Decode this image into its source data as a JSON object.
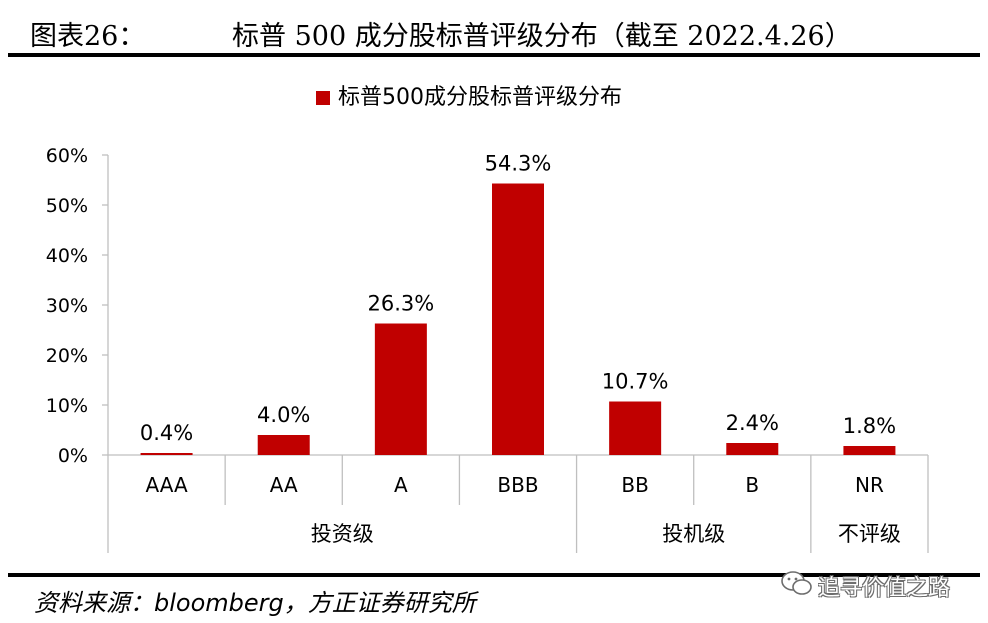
{
  "figure_label": "图表26：",
  "figure_title": "标普 500 成分股标普评级分布（截至 2022.4.26）",
  "source": "资料来源：bloomberg，方正证券研究所",
  "watermark": "追寻价值之路",
  "colors": {
    "bar": "#C00000",
    "axis": "#BFBFBF",
    "text": "#000000"
  },
  "chart_data": {
    "type": "bar",
    "legend": {
      "label": "标普500成分股标普评级分布",
      "position": "top-center"
    },
    "categories": [
      "AAA",
      "AA",
      "A",
      "BBB",
      "BB",
      "B",
      "NR"
    ],
    "values": [
      0.4,
      4.0,
      26.3,
      54.3,
      10.7,
      2.4,
      1.8
    ],
    "data_labels": [
      "0.4%",
      "4.0%",
      "26.3%",
      "54.3%",
      "10.7%",
      "2.4%",
      "1.8%"
    ],
    "groups": [
      {
        "label": "投资级",
        "categories": [
          "AAA",
          "AA",
          "A",
          "BBB"
        ]
      },
      {
        "label": "投机级",
        "categories": [
          "BB",
          "B"
        ]
      },
      {
        "label": "不评级",
        "categories": [
          "NR"
        ]
      }
    ],
    "y_ticks": [
      "0%",
      "10%",
      "20%",
      "30%",
      "40%",
      "50%",
      "60%"
    ],
    "ylim": [
      0,
      60
    ],
    "grid": false
  }
}
